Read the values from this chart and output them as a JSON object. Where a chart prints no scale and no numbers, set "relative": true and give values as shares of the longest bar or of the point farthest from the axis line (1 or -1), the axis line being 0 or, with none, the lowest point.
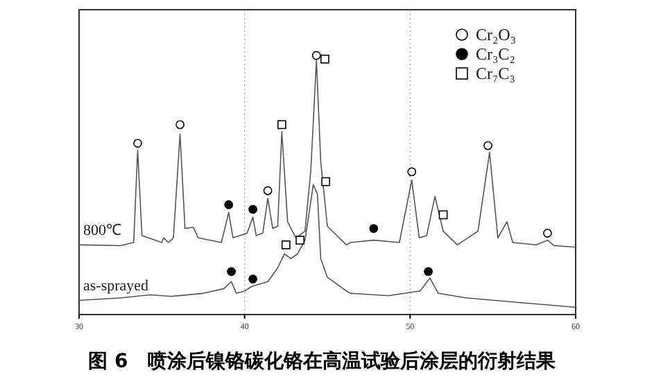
{
  "chart_data": {
    "type": "line",
    "relative": true,
    "title": "图 6　喷涂后镍铬碳化铬在高温试验后涂层的衍射结果",
    "xlim": [
      30,
      60
    ],
    "xticks": [
      30,
      40,
      50,
      60
    ],
    "grid": "x",
    "legend": "top right",
    "series": [
      {
        "name": "800℃",
        "marker": "none",
        "color": "#555555",
        "x": [
          30.0,
          32.5,
          33.3,
          33.54,
          33.8,
          35.0,
          35.1,
          35.4,
          35.7,
          36.1,
          36.4,
          36.9,
          37.2,
          38.6,
          39.04,
          39.3,
          40.15,
          40.5,
          40.7,
          41.1,
          41.4,
          41.7,
          42.0,
          42.25,
          42.6,
          43.1,
          43.65,
          44.0,
          44.34,
          44.6,
          45.0,
          46.15,
          46.4,
          47.8,
          49.35,
          50.1,
          50.55,
          51.0,
          51.5,
          52.0,
          52.85,
          54.1,
          54.8,
          55.3,
          55.85,
          56.2,
          57.6,
          58.3,
          58.7,
          60.0
        ],
        "values": [
          0.269,
          0.266,
          0.278,
          0.635,
          0.305,
          0.278,
          0.296,
          0.278,
          0.296,
          0.697,
          0.332,
          0.337,
          0.296,
          0.278,
          0.394,
          0.296,
          0.314,
          0.376,
          0.305,
          0.314,
          0.448,
          0.332,
          0.341,
          0.706,
          0.358,
          0.296,
          0.322,
          0.555,
          0.982,
          0.59,
          0.341,
          0.269,
          0.278,
          0.287,
          0.278,
          0.519,
          0.296,
          0.305,
          0.456,
          0.322,
          0.269,
          0.322,
          0.626,
          0.296,
          0.358,
          0.278,
          0.269,
          0.287,
          0.266,
          0.26
        ]
      },
      {
        "name": "as-sprayed",
        "marker": "none",
        "color": "#555555",
        "x": [
          30.0,
          32.5,
          34.3,
          35.55,
          37.5,
          38.75,
          39.2,
          39.5,
          40.0,
          40.45,
          41.4,
          42.0,
          42.4,
          42.8,
          43.2,
          43.65,
          44.15,
          44.4,
          44.6,
          45.0,
          46.15,
          46.4,
          48.7,
          50.6,
          51.2,
          51.7,
          53.4,
          55.1,
          56.5,
          60.0
        ],
        "values": [
          0.055,
          0.064,
          0.076,
          0.07,
          0.082,
          0.1,
          0.127,
          0.082,
          0.091,
          0.109,
          0.127,
          0.18,
          0.234,
          0.216,
          0.234,
          0.287,
          0.501,
          0.465,
          0.216,
          0.144,
          0.091,
          0.082,
          0.073,
          0.091,
          0.141,
          0.082,
          0.064,
          0.055,
          0.047,
          0.028
        ]
      },
      {
        "name": "Cr₂O₃",
        "type": "scatter",
        "marker": "circle",
        "color": "#ffffff",
        "x": [
          33.54,
          36.1,
          41.4,
          44.34,
          50.1,
          54.7,
          58.3
        ],
        "values": [
          0.661,
          0.733,
          0.478,
          1.0,
          0.551,
          0.652,
          0.314
        ]
      },
      {
        "name": "Cr₃C₂",
        "type": "scatter",
        "marker": "circle",
        "color": "#000000",
        "x": [
          39.04,
          40.5,
          47.8,
          39.2,
          40.5,
          51.1
        ],
        "values": [
          0.424,
          0.406,
          0.332,
          0.166,
          0.137,
          0.166
        ]
      },
      {
        "name": "Cr₇C₃",
        "type": "scatter",
        "marker": "square",
        "color": "#ffffff",
        "x": [
          42.25,
          44.85,
          44.9,
          52.0,
          42.5,
          43.35
        ],
        "values": [
          0.733,
          0.986,
          0.513,
          0.385,
          0.269,
          0.287
        ]
      }
    ]
  }
}
